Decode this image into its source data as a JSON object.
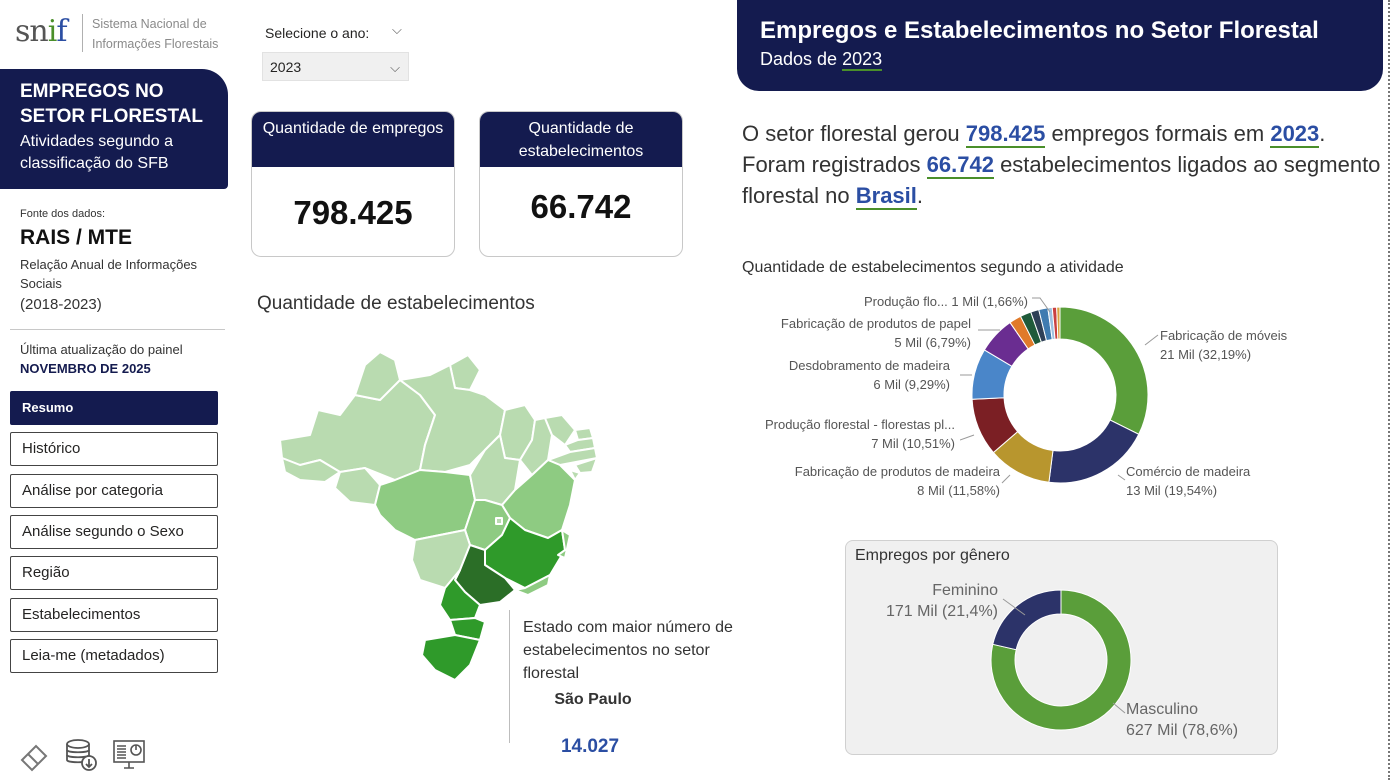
{
  "logo": {
    "name": "snif",
    "text": "Sistema Nacional de Informações Florestais"
  },
  "sidebar": {
    "title_bold": "EMPREGOS NO SETOR FLORESTAL",
    "title_sub": "Atividades segundo a classificação do SFB",
    "source_label": "Fonte dos dados:",
    "source_name": "RAIS / MTE",
    "source_desc": "Relação Anual de Informações Sociais",
    "source_period": "(2018-2023)",
    "update_label": "Última atualização do painel",
    "update_value": "NOVEMBRO DE 2025",
    "nav": [
      {
        "label": "Resumo",
        "active": true
      },
      {
        "label": "Histórico"
      },
      {
        "label": "Análise por categoria"
      },
      {
        "label": "Análise segundo o Sexo"
      },
      {
        "label": "Região"
      },
      {
        "label": "Estabelecimentos"
      },
      {
        "label": "Leia-me (metadados)"
      }
    ],
    "footer_icons": [
      "eraser-icon",
      "database-download-icon",
      "monitor-dashboard-icon"
    ]
  },
  "year_select": {
    "label": "Selecione o ano:",
    "value": "2023"
  },
  "kpis": [
    {
      "label": "Quantidade de empregos",
      "value": "798.425"
    },
    {
      "label": "Quantidade de estabelecimentos",
      "value": "66.742"
    }
  ],
  "map": {
    "title": "Quantidade de estabelecimentos",
    "max_label": "Estado com maior número de estabelecimentos no setor florestal",
    "max_state": "São Paulo",
    "max_value": "14.027"
  },
  "banner": {
    "title": "Empregos e Estabelecimentos no Setor Florestal",
    "subtitle_prefix": "Dados de",
    "subtitle_year": "2023"
  },
  "summary": {
    "p1": "O setor florestal gerou",
    "jobs": "798.425",
    "p2": "empregos formais em",
    "year": "2023",
    "p3": "Foram registrados",
    "estab": "66.742",
    "p4": "estabelecimentos ligados ao segmento florestal no",
    "place": "Brasil"
  },
  "chart_data": [
    {
      "type": "pie",
      "title": "Quantidade de estabelecimentos segundo a atividade",
      "slices": [
        {
          "name": "Fabricação de móveis",
          "value": 32.19,
          "label": "21 Mil (32,19%)",
          "color": "#5a9e3a"
        },
        {
          "name": "Comércio de madeira",
          "value": 19.54,
          "label": "13 Mil (19,54%)",
          "color": "#2c3369"
        },
        {
          "name": "Fabricação de produtos de madeira",
          "value": 11.58,
          "label": "8 Mil (11,58%)",
          "color": "#b8962e"
        },
        {
          "name": "Produção florestal - florestas pl...",
          "value": 10.51,
          "label": "7 Mil (10,51%)",
          "color": "#7b1f24"
        },
        {
          "name": "Desdobramento de madeira",
          "value": 9.29,
          "label": "6 Mil (9,29%)",
          "color": "#4a86c9"
        },
        {
          "name": "Fabricação de produtos de papel",
          "value": 6.79,
          "label": "5 Mil (6,79%)",
          "color": "#6a2d91"
        },
        {
          "name": "",
          "value": 2.2,
          "label": "",
          "color": "#e07a2a"
        },
        {
          "name": "",
          "value": 2.0,
          "label": "",
          "color": "#1f5a3a"
        },
        {
          "name": "",
          "value": 1.5,
          "label": "",
          "color": "#2e4057"
        },
        {
          "name": "Produção flo...",
          "value": 1.66,
          "label": "1 Mil (1,66%)",
          "color": "#3f7bb0"
        },
        {
          "name": "",
          "value": 0.8,
          "label": "",
          "color": "#9ec1e0"
        },
        {
          "name": "",
          "value": 0.8,
          "label": "",
          "color": "#c94040"
        },
        {
          "name": "",
          "value": 0.6,
          "label": "",
          "color": "#d9a441"
        }
      ]
    },
    {
      "type": "pie",
      "title": "Empregos por gênero",
      "slices": [
        {
          "name": "Masculino",
          "value": 78.6,
          "label": "627 Mil (78,6%)",
          "color": "#5a9e3a"
        },
        {
          "name": "Feminino",
          "value": 21.4,
          "label": "171 Mil (21,4%)",
          "color": "#2c3369"
        }
      ]
    }
  ],
  "map_states": {
    "legend_note": "",
    "colors": {
      "light": "#b9dbb0",
      "mid": "#8ecb82",
      "dark": "#2f9a2a",
      "darkest": "#2b6e27"
    }
  }
}
